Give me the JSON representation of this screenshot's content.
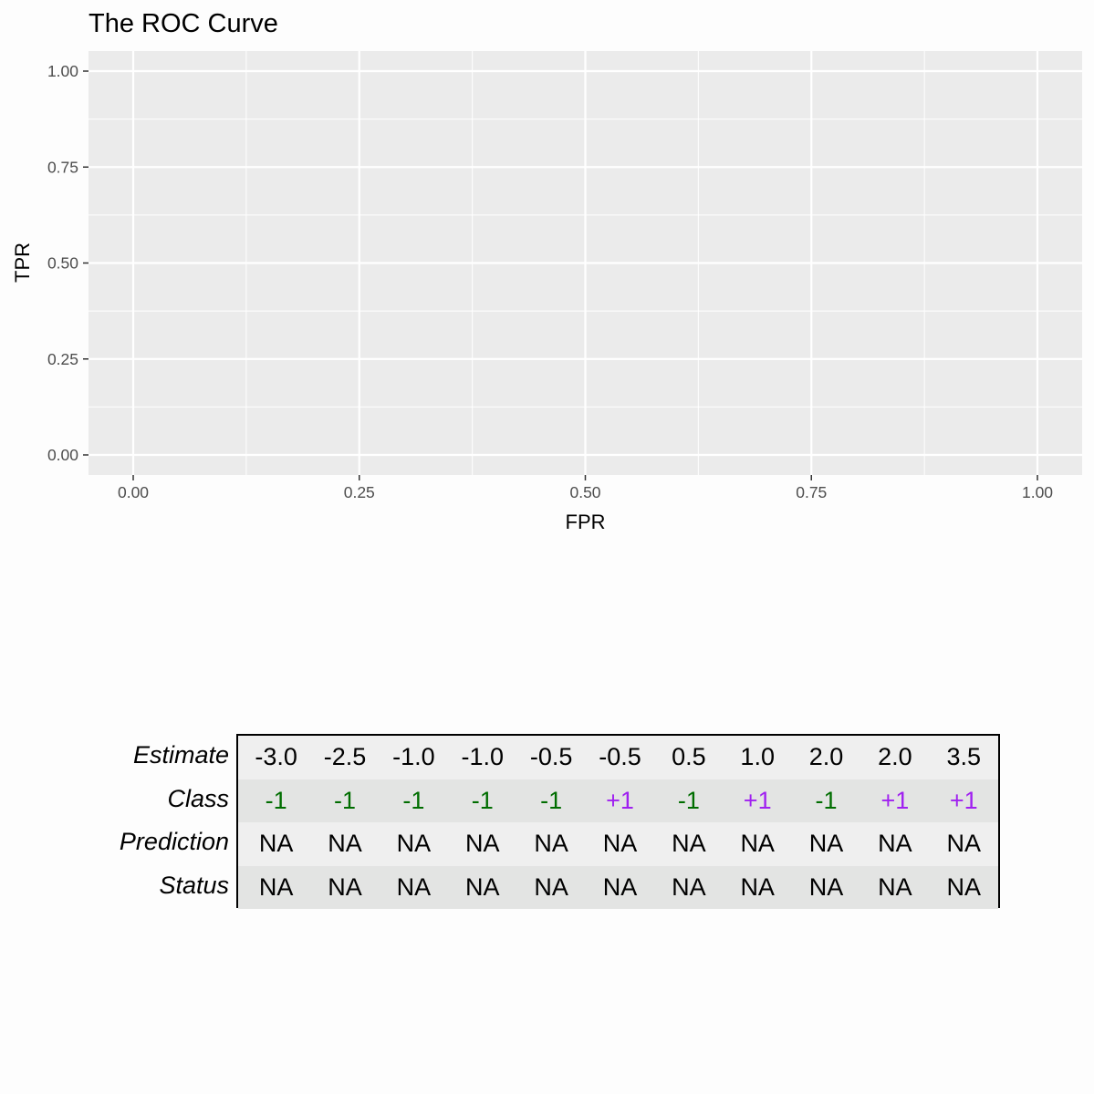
{
  "chart_data": {
    "type": "line",
    "title": "The ROC Curve",
    "xlabel": "FPR",
    "ylabel": "TPR",
    "xlim": [
      0,
      1
    ],
    "ylim": [
      0,
      1
    ],
    "xticks": [
      "0.00",
      "0.25",
      "0.50",
      "0.75",
      "1.00"
    ],
    "yticks": [
      "0.00",
      "0.25",
      "0.50",
      "0.75",
      "1.00"
    ],
    "grid": true,
    "series": []
  },
  "table": {
    "row_labels": [
      "Estimate",
      "Class",
      "Prediction",
      "Status"
    ],
    "estimate": [
      "-3.0",
      "-2.5",
      "-1.0",
      "-1.0",
      "-0.5",
      "-0.5",
      "0.5",
      "1.0",
      "2.0",
      "2.0",
      "3.5"
    ],
    "class": [
      "-1",
      "-1",
      "-1",
      "-1",
      "-1",
      "+1",
      "-1",
      "+1",
      "-1",
      "+1",
      "+1"
    ],
    "prediction": [
      "NA",
      "NA",
      "NA",
      "NA",
      "NA",
      "NA",
      "NA",
      "NA",
      "NA",
      "NA",
      "NA"
    ],
    "status": [
      "NA",
      "NA",
      "NA",
      "NA",
      "NA",
      "NA",
      "NA",
      "NA",
      "NA",
      "NA",
      "NA"
    ],
    "colors": {
      "negative": "#006d00",
      "positive": "#a020f0"
    }
  }
}
